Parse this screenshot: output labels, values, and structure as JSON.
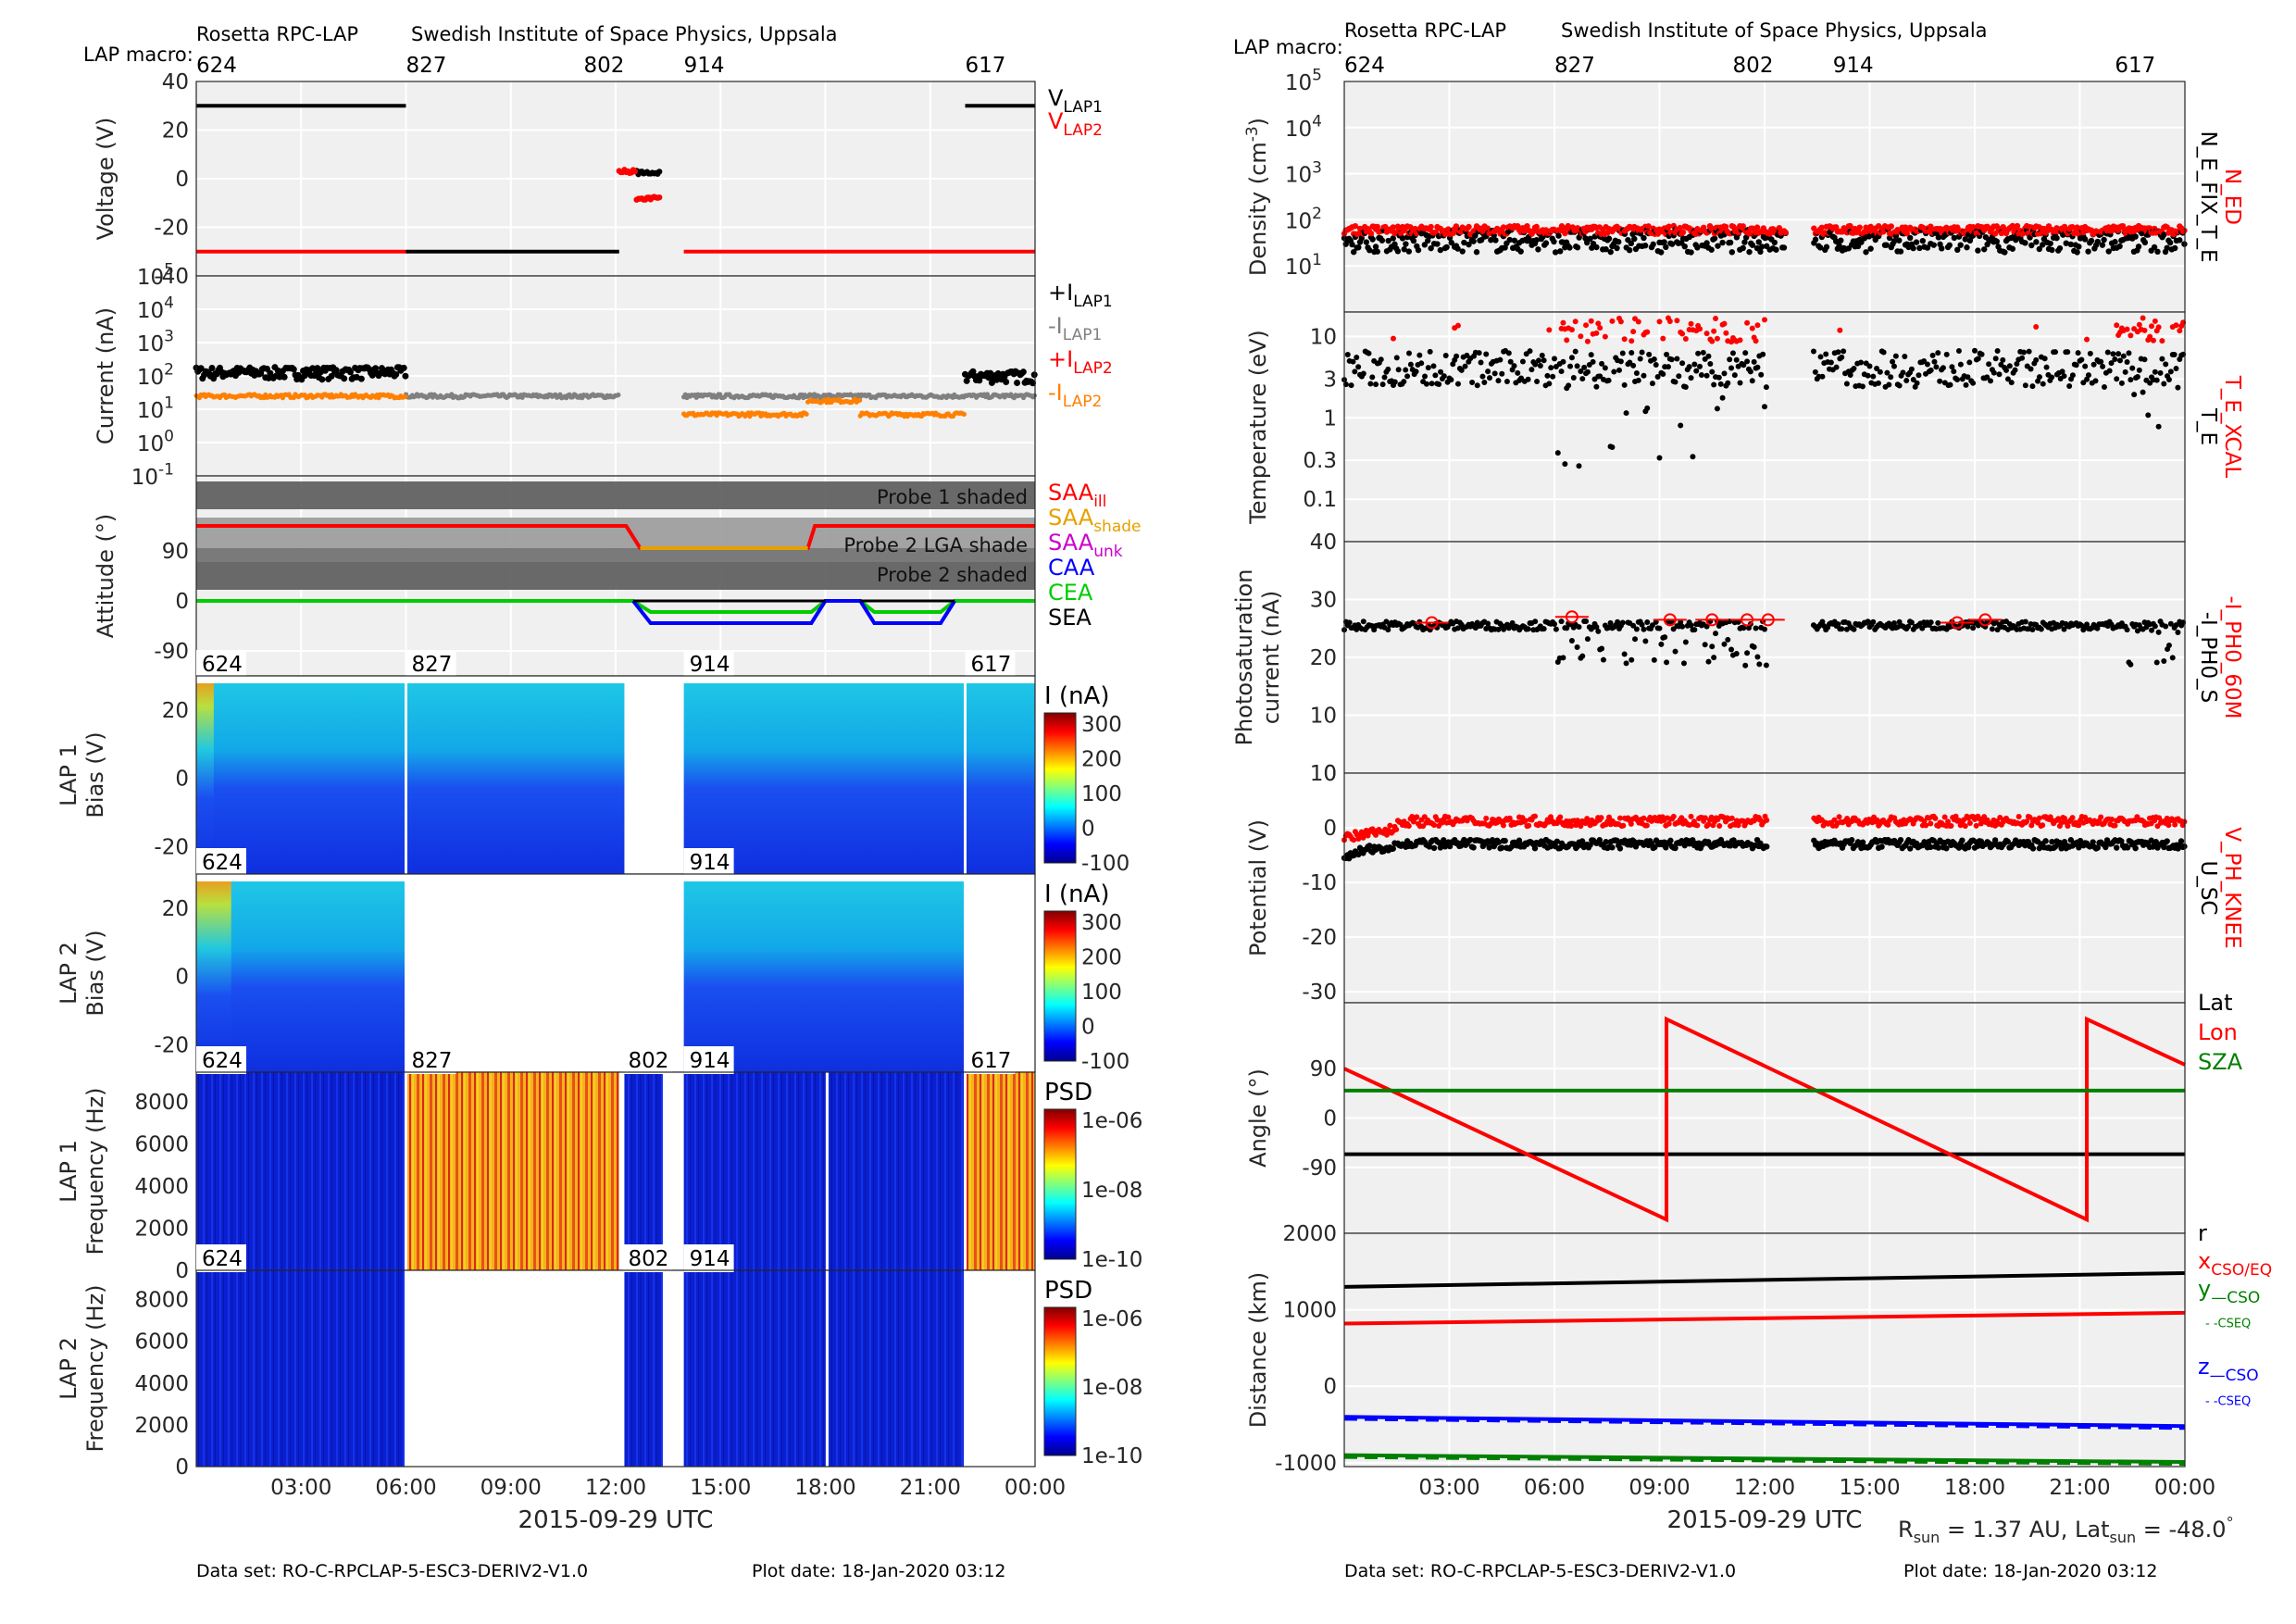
{
  "header": {
    "mission": "Rosetta RPC-LAP",
    "institute": "Swedish Institute of Space Physics, Uppsala",
    "macro_label": "LAP macro:"
  },
  "footer": {
    "dataset": "Data set: RO-C-RPCLAP-5-ESC3-DERIV2-V1.0",
    "plot_date": "Plot date: 18-Jan-2020 03:12",
    "rsun": "R",
    "rsun_sub": "sun",
    "rsun_value": " = 1.37 AU, Lat",
    "lat_sub": "sun",
    "lat_value": " = -48.0",
    "lat_unit": "°"
  },
  "colors": {
    "black": "#000000",
    "red": "#ff0000",
    "grey": "#808080",
    "orange": "#ff8000",
    "magenta": "#cc00cc",
    "blue": "#0000ff",
    "green": "#00cc00",
    "dark_green": "#008000",
    "panel_bg": "#f0f0f0",
    "shade": "#555555"
  },
  "chart_data": [
    {
      "id": "left",
      "type": "line",
      "xlabel": "2015-09-29 UTC",
      "xlim": [
        "00:00",
        "24:00"
      ],
      "xticks": [
        "03:00",
        "06:00",
        "09:00",
        "12:00",
        "15:00",
        "18:00",
        "21:00",
        "00:00"
      ],
      "macros": [
        {
          "label": "624",
          "t": 0
        },
        {
          "label": "827",
          "t": 6
        },
        {
          "label": "802",
          "t": 12.25
        },
        {
          "label": "914",
          "t": 13.95
        },
        {
          "label": "617",
          "t": 22
        }
      ],
      "panels": [
        {
          "id": "voltage",
          "ylabel": "Voltage (V)",
          "ylim": [
            -40,
            40
          ],
          "yticks": [
            "40",
            "20",
            "0",
            "-20",
            "-40"
          ],
          "legend": [
            {
              "text": "V",
              "sub": "LAP1",
              "color": "#000000"
            },
            {
              "text": "V",
              "sub": "LAP2",
              "color": "#ff0000"
            }
          ],
          "series": [
            {
              "name": "V_LAP1",
              "color": "#000000",
              "segments": [
                [
                  0,
                  6,
                  30
                ],
                [
                  6,
                  12.1,
                  -30
                ],
                [
                  12.6,
                  13.3,
                  2.5
                ],
                [
                  22,
                  24,
                  30
                ]
              ]
            },
            {
              "name": "V_LAP2",
              "color": "#ff0000",
              "segments": [
                [
                  0,
                  6,
                  -30
                ],
                [
                  12.1,
                  12.6,
                  3
                ],
                [
                  12.6,
                  13.3,
                  -8
                ],
                [
                  13.95,
                  22,
                  -30
                ],
                [
                  22,
                  24,
                  -30
                ]
              ]
            }
          ]
        },
        {
          "id": "current",
          "ylabel": "Current (nA)",
          "scale": "log",
          "ylim": [
            0.1,
            100000
          ],
          "yticks": [
            "10",
            "10",
            "10",
            "10",
            "10",
            "10",
            "10"
          ],
          "ytick_exp": [
            "5",
            "4",
            "3",
            "2",
            "1",
            "0",
            "-1"
          ],
          "legend": [
            {
              "text": "+I",
              "sub": "LAP1",
              "color": "#000000"
            },
            {
              "text": "-I",
              "sub": "LAP1",
              "color": "#808080"
            },
            {
              "text": "+I",
              "sub": "LAP2",
              "color": "#ff0000"
            },
            {
              "text": "-I",
              "sub": "LAP2",
              "color": "#ff8000"
            }
          ],
          "series": [
            {
              "name": "+I_LAP1",
              "color": "#000000",
              "segments": [
                [
                  0,
                  6,
                  130
                ],
                [
                  22,
                  24,
                  100
                ]
              ]
            },
            {
              "name": "-I_LAP1",
              "color": "#808080",
              "segments": [
                [
                  6,
                  12.1,
                  25
                ],
                [
                  13.95,
                  24,
                  25
                ]
              ]
            },
            {
              "name": "-I_LAP2",
              "color": "#ff8000",
              "segments": [
                [
                  0,
                  6,
                  25
                ],
                [
                  13.95,
                  17.5,
                  7
                ],
                [
                  17.5,
                  19,
                  18
                ],
                [
                  19,
                  22,
                  7
                ]
              ]
            }
          ]
        },
        {
          "id": "attitude",
          "ylabel": "Attitude (°)",
          "ylim": [
            -135,
            225
          ],
          "yticks": [
            "90",
            "0",
            "-90"
          ],
          "shade_labels": [
            "Probe 1 shaded",
            "Probe 2 LGA shade",
            "Probe 2 shaded"
          ],
          "legend": [
            {
              "text": "SAA",
              "sub": "ill",
              "color": "#ff0000"
            },
            {
              "text": "SAA",
              "sub": "shade",
              "color": "#e6a000"
            },
            {
              "text": "SAA",
              "sub": "unk",
              "color": "#cc00cc"
            },
            {
              "text": "CAA",
              "sub": "",
              "color": "#0000ff"
            },
            {
              "text": "CEA",
              "sub": "",
              "color": "#00cc00"
            },
            {
              "text": "SEA",
              "sub": "",
              "color": "#000000"
            }
          ]
        },
        {
          "id": "lap1_bias",
          "ylabel": "LAP 1",
          "ylabel2": "Bias (V)",
          "yticks": [
            "20",
            "0",
            "-20"
          ],
          "cbar_title": "I (nA)",
          "cbar_ticks": [
            "300",
            "200",
            "100",
            "0",
            "-100"
          ]
        },
        {
          "id": "lap2_bias",
          "ylabel": "LAP 2",
          "ylabel2": "Bias (V)",
          "yticks": [
            "20",
            "0",
            "-20"
          ],
          "cbar_title": "I (nA)",
          "cbar_ticks": [
            "300",
            "200",
            "100",
            "0",
            "-100"
          ]
        },
        {
          "id": "lap1_freq",
          "ylabel": "LAP 1",
          "ylabel2": "Frequency (Hz)",
          "yticks": [
            "8000",
            "6000",
            "4000",
            "2000",
            "0"
          ],
          "cbar_title": "PSD",
          "cbar_ticks": [
            "1e-06",
            "1e-08",
            "1e-10"
          ]
        },
        {
          "id": "lap2_freq",
          "ylabel": "LAP 2",
          "ylabel2": "Frequency (Hz)",
          "yticks": [
            "8000",
            "6000",
            "4000",
            "2000",
            "0"
          ],
          "cbar_title": "PSD",
          "cbar_ticks": [
            "1e-06",
            "1e-08",
            "1e-10"
          ]
        }
      ]
    },
    {
      "id": "right",
      "type": "scatter",
      "xlabel": "2015-09-29 UTC",
      "xlim": [
        "00:00",
        "24:00"
      ],
      "xticks": [
        "03:00",
        "06:00",
        "09:00",
        "12:00",
        "15:00",
        "18:00",
        "21:00",
        "00:00"
      ],
      "macros": [
        {
          "label": "624",
          "t": 0
        },
        {
          "label": "827",
          "t": 6
        },
        {
          "label": "802",
          "t": 12.25
        },
        {
          "label": "914",
          "t": 13.95
        },
        {
          "label": "617",
          "t": 22
        }
      ],
      "panels": [
        {
          "id": "density",
          "ylabel": "Density (cm",
          "ylabel_sup": "-3",
          "ylabel_end": ")",
          "scale": "log",
          "ylim": [
            1,
            100000
          ],
          "yticks": [
            "10",
            "10",
            "10",
            "10",
            "10"
          ],
          "ytick_exp": [
            "5",
            "4",
            "3",
            "2",
            "1"
          ],
          "side_labels": [
            {
              "text": "N_ED",
              "color": "#ff0000"
            },
            {
              "text": "N_E_FIX_T_E",
              "color": "#000000"
            }
          ],
          "series": [
            {
              "name": "N_ED",
              "color": "#ff0000",
              "level": 60
            },
            {
              "name": "N_E_FIX_T_E",
              "color": "#000000",
              "level": 35
            }
          ]
        },
        {
          "id": "temperature",
          "ylabel": "Temperature (eV)",
          "scale": "log",
          "ylim": [
            0.03,
            20
          ],
          "yticks": [
            "10",
            "3",
            "1",
            "0.3",
            "0.1"
          ],
          "side_labels": [
            {
              "text": "T_E_XCAL",
              "color": "#ff0000"
            },
            {
              "text": "T_E",
              "color": "#000000"
            }
          ],
          "series": [
            {
              "name": "T_E_XCAL",
              "color": "#ff0000",
              "level": 12
            },
            {
              "name": "T_E",
              "color": "#000000",
              "level": 4
            }
          ]
        },
        {
          "id": "photosat",
          "ylabel": "Photosaturation",
          "ylabel2": "current (nA)",
          "ylim": [
            0,
            40
          ],
          "yticks": [
            "40",
            "30",
            "20",
            "10",
            "0"
          ],
          "side_labels": [
            {
              "text": "-I_PH0_60M",
              "color": "#ff0000"
            },
            {
              "text": "-I_PH0_S",
              "color": "#000000"
            }
          ],
          "series": [
            {
              "name": "-I_PH0_60M",
              "color": "#ff0000",
              "points": [
                [
                  2.5,
                  26
                ],
                [
                  6.5,
                  27
                ],
                [
                  9.3,
                  26.5
                ],
                [
                  10.5,
                  26.5
                ],
                [
                  11.5,
                  26.5
                ],
                [
                  12.1,
                  26.5
                ],
                [
                  17.5,
                  26
                ],
                [
                  18.3,
                  26.5
                ]
              ]
            },
            {
              "name": "-I_PH0_S",
              "color": "#000000",
              "level": 25.5
            }
          ]
        },
        {
          "id": "potential",
          "ylabel": "Potential (V)",
          "ylim": [
            -32,
            10
          ],
          "yticks": [
            "10",
            "0",
            "-10",
            "-20",
            "-30"
          ],
          "side_labels": [
            {
              "text": "V_PH_KNEE",
              "color": "#ff0000"
            },
            {
              "text": "U_SC",
              "color": "#000000"
            }
          ],
          "series": [
            {
              "name": "V_PH_KNEE",
              "color": "#ff0000",
              "level": 1
            },
            {
              "name": "U_SC",
              "color": "#000000",
              "level": -3
            }
          ]
        },
        {
          "id": "angle",
          "ylabel": "Angle (°)",
          "ylim": [
            -210,
            210
          ],
          "yticks": [
            "90",
            "0",
            "-90"
          ],
          "legend": [
            {
              "text": "Lat",
              "color": "#000000"
            },
            {
              "text": "Lon",
              "color": "#ff0000"
            },
            {
              "text": "SZA",
              "color": "#008000"
            }
          ],
          "series": [
            {
              "name": "Lat",
              "color": "#000000",
              "x": [
                0,
                24
              ],
              "y": [
                -66,
                -66
              ]
            },
            {
              "name": "Lon",
              "color": "#ff0000",
              "x": [
                0,
                9.2,
                9.2,
                21.2,
                21.2,
                24
              ],
              "y": [
                90,
                -185,
                180,
                -185,
                180,
                97
              ]
            },
            {
              "name": "SZA",
              "color": "#008000",
              "x": [
                0,
                24
              ],
              "y": [
                50,
                50
              ]
            }
          ]
        },
        {
          "id": "distance",
          "ylabel": "Distance (km)",
          "ylim": [
            -1000,
            2000
          ],
          "yticks": [
            "2000",
            "1000",
            "0",
            "-1000"
          ],
          "legend": [
            {
              "text": "r",
              "sub": "",
              "color": "#000000"
            },
            {
              "text": "x",
              "sub": "CSO/EQ",
              "color": "#ff0000"
            },
            {
              "text": "y",
              "sub": "—CSO",
              "color": "#008000"
            },
            {
              "text": "",
              "sub": "- -CSEQ",
              "color": "#008000"
            },
            {
              "text": "z",
              "sub": "—CSO",
              "color": "#0000ff"
            },
            {
              "text": "",
              "sub": "- -CSEQ",
              "color": "#0000ff"
            }
          ],
          "series": [
            {
              "name": "r",
              "color": "#000000",
              "x": [
                0,
                24
              ],
              "y": [
                1300,
                1480
              ]
            },
            {
              "name": "x",
              "color": "#ff0000",
              "x": [
                0,
                24
              ],
              "y": [
                820,
                960
              ]
            },
            {
              "name": "y",
              "color": "#008000",
              "x": [
                0,
                24
              ],
              "y": [
                -900,
                -990
              ]
            },
            {
              "name": "z",
              "color": "#0000ff",
              "x": [
                0,
                24
              ],
              "y": [
                -400,
                -520
              ]
            }
          ]
        }
      ]
    }
  ]
}
